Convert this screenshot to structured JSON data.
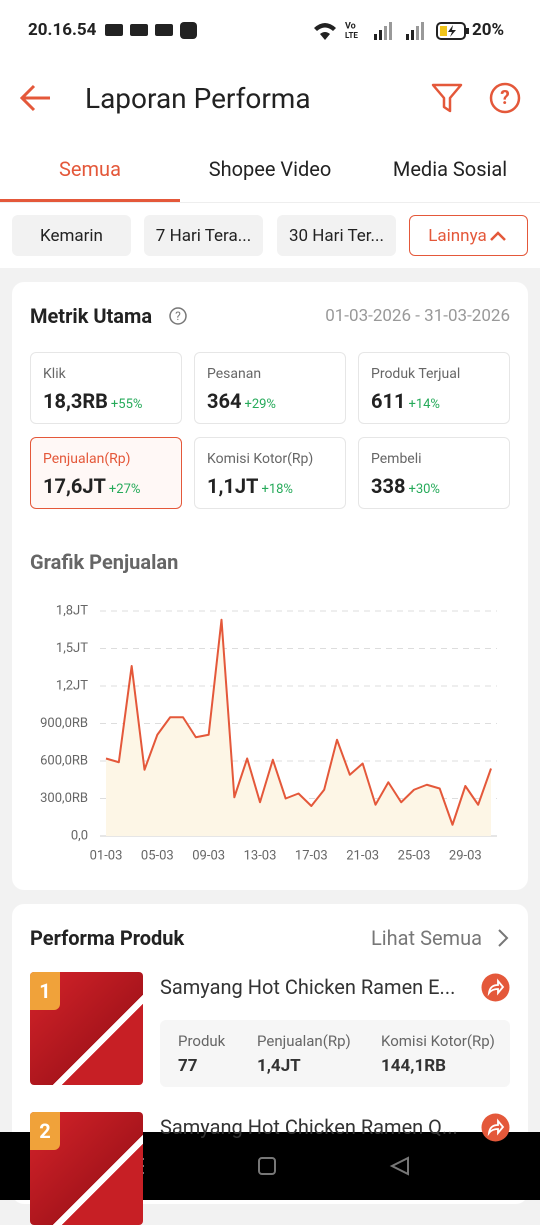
{
  "status_bar": {
    "time": "20.16.54",
    "battery": "20%"
  },
  "header": {
    "title": "Laporan Performa"
  },
  "tabs": {
    "items": [
      "Semua",
      "Shopee Video",
      "Media Sosial"
    ],
    "active": 0
  },
  "filters": {
    "items": [
      "Kemarin",
      "7 Hari Tera...",
      "30 Hari Ter...",
      "Lainnya"
    ],
    "active": 3
  },
  "metrics": {
    "title": "Metrik Utama",
    "date_range": "01-03-2026 - 31-03-2026",
    "selected": 3,
    "items": [
      {
        "label": "Klik",
        "value": "18,3RB",
        "change": "+55%"
      },
      {
        "label": "Pesanan",
        "value": "364",
        "change": "+29%"
      },
      {
        "label": "Produk Terjual",
        "value": "611",
        "change": "+14%"
      },
      {
        "label": "Penjualan(Rp)",
        "value": "17,6JT",
        "change": "+27%"
      },
      {
        "label": "Komisi Kotor(Rp)",
        "value": "1,1JT",
        "change": "+18%"
      },
      {
        "label": "Pembeli",
        "value": "338",
        "change": "+30%"
      }
    ]
  },
  "chart_data": {
    "type": "line",
    "title": "Grafik Penjualan",
    "categories": [
      "01-03",
      null,
      null,
      null,
      "05-03",
      null,
      null,
      null,
      "09-03",
      null,
      null,
      null,
      "13-03",
      null,
      null,
      null,
      "17-03",
      null,
      null,
      null,
      "21-03",
      null,
      null,
      null,
      "25-03",
      null,
      null,
      null,
      "29-03",
      null,
      null
    ],
    "series": [
      {
        "color": "#e4583a",
        "fill": "#fdf6e6",
        "values": [
          620000,
          590000,
          1360000,
          530000,
          810000,
          950000,
          950000,
          790000,
          810000,
          1730000,
          310000,
          620000,
          270000,
          610000,
          300000,
          340000,
          240000,
          370000,
          770000,
          490000,
          580000,
          250000,
          430000,
          270000,
          370000,
          410000,
          380000,
          90000,
          400000,
          250000,
          540000
        ]
      }
    ],
    "ylim": [
      0,
      1800000
    ],
    "yticks": [
      {
        "value": 0,
        "label": "0,0"
      },
      {
        "value": 300000,
        "label": "300,0RB"
      },
      {
        "value": 600000,
        "label": "600,0RB"
      },
      {
        "value": 900000,
        "label": "900,0RB"
      },
      {
        "value": 1200000,
        "label": "1,2JT"
      },
      {
        "value": 1500000,
        "label": "1,5JT"
      },
      {
        "value": 1800000,
        "label": "1,8JT"
      }
    ],
    "grid": true
  },
  "products": {
    "title": "Performa Produk",
    "link": "Lihat Semua",
    "items": [
      {
        "rank": "1",
        "name": "Samyang Hot Chicken Ramen E...",
        "stats": [
          {
            "label": "Produk",
            "value": "77"
          },
          {
            "label": "Penjualan(Rp)",
            "value": "1,4JT"
          },
          {
            "label": "Komisi Kotor(Rp)",
            "value": "144,1RB"
          }
        ]
      },
      {
        "rank": "2",
        "name": "Samyang Hot Chicken Ramen Q..."
      }
    ]
  }
}
